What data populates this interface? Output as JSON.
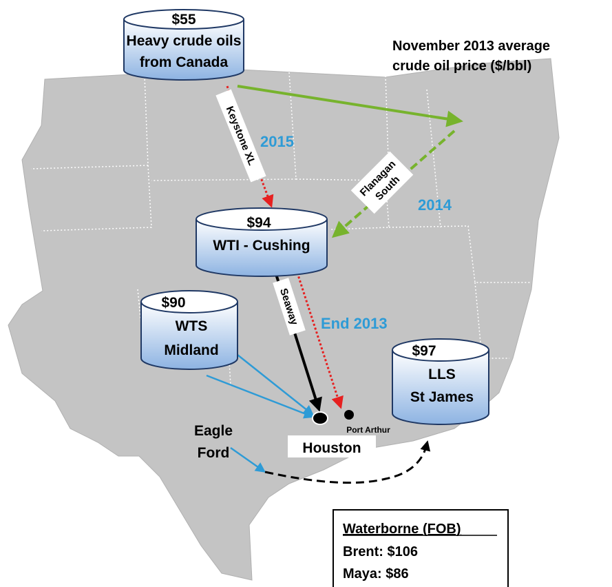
{
  "title": [
    "November 2013 average",
    "crude oil price ($/bbl)"
  ],
  "nodes": [
    {
      "price": "$55",
      "label": [
        "Heavy crude oils",
        "from Canada"
      ]
    },
    {
      "price": "$94",
      "label": [
        "WTI - Cushing"
      ]
    },
    {
      "price": "$90",
      "label": [
        "WTS",
        "Midland"
      ]
    },
    {
      "price": "$97",
      "label": [
        "LLS",
        "St James"
      ]
    }
  ],
  "pipelines": [
    {
      "label": [
        "Keystone XL"
      ]
    },
    {
      "label": [
        "Flanagan",
        "South"
      ]
    },
    {
      "label": [
        "Seaway"
      ]
    }
  ],
  "years": [
    "2015",
    "2014",
    "End 2013"
  ],
  "places": {
    "houston": "Houston",
    "port_arthur": "Port Arthur",
    "eagle_ford": [
      "Eagle",
      "Ford"
    ]
  },
  "box": {
    "title": "Waterborne (FOB)",
    "lines": [
      "Brent: $106",
      "Maya: $86"
    ]
  }
}
